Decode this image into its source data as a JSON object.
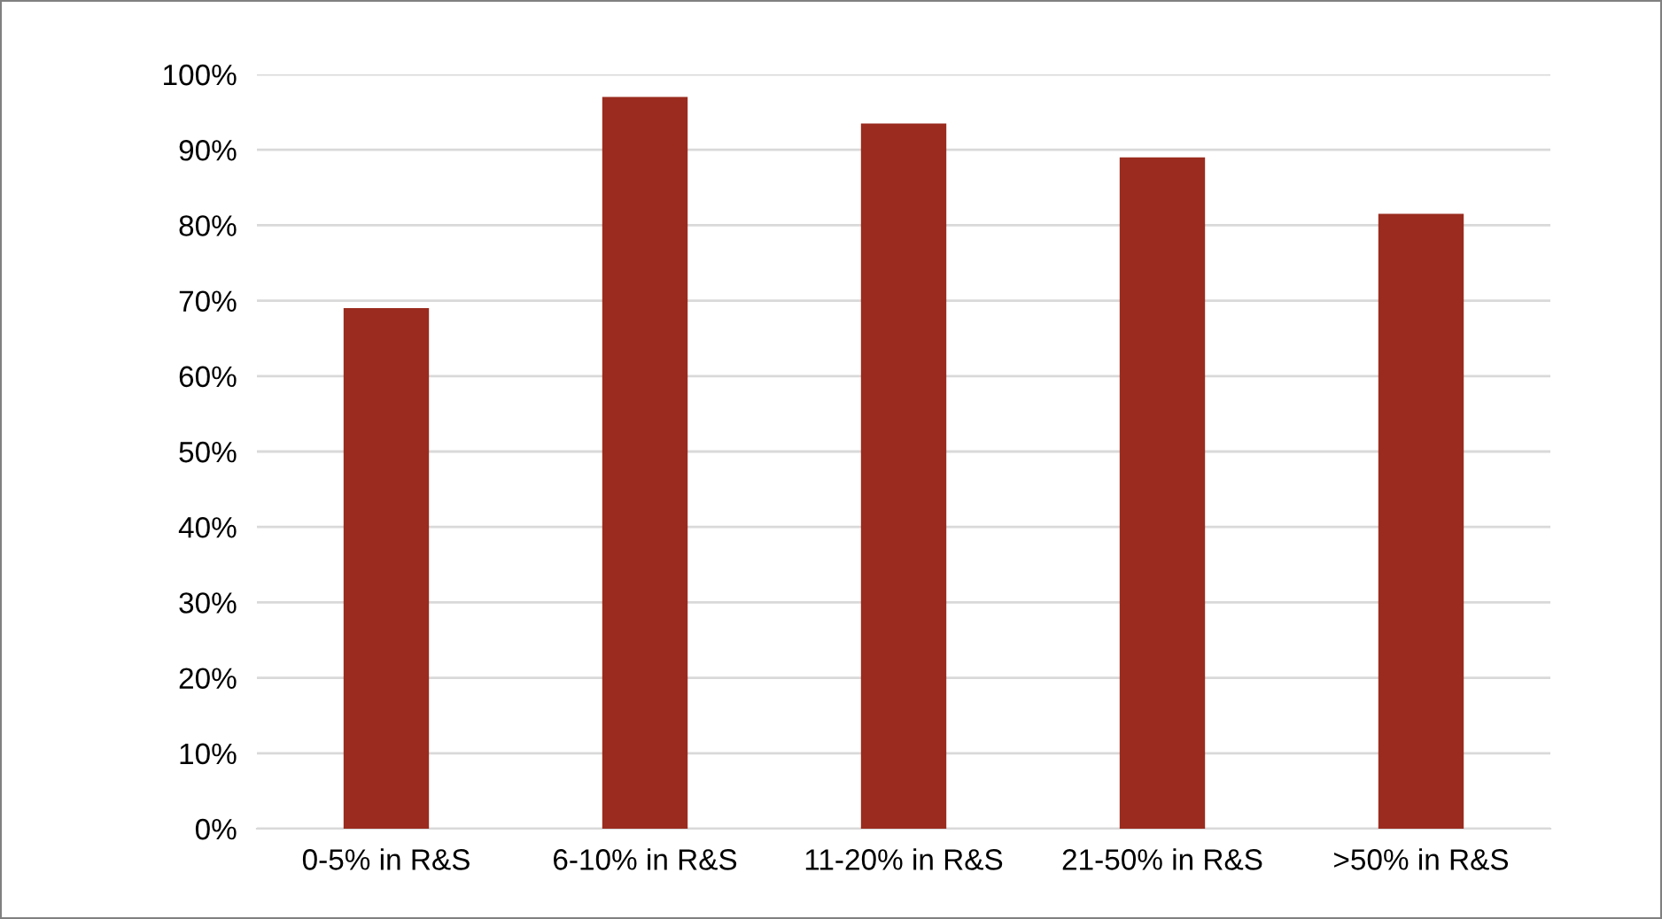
{
  "chart_data": {
    "type": "bar",
    "categories": [
      "0-5% in R&S",
      "6-10% in R&S",
      "11-20% in R&S",
      "21-50% in R&S",
      ">50% in R&S"
    ],
    "values": [
      69,
      97,
      93.5,
      89,
      81.5
    ],
    "color": "#9a2b1e",
    "ylim": [
      0,
      100
    ],
    "yticks": [
      {
        "value": 0,
        "label": "0%"
      },
      {
        "value": 10,
        "label": "10%"
      },
      {
        "value": 20,
        "label": "20%"
      },
      {
        "value": 30,
        "label": "30%"
      },
      {
        "value": 40,
        "label": "40%"
      },
      {
        "value": 50,
        "label": "50%"
      },
      {
        "value": 60,
        "label": "60%"
      },
      {
        "value": 70,
        "label": "70%"
      },
      {
        "value": 80,
        "label": "80%"
      },
      {
        "value": 90,
        "label": "90%"
      },
      {
        "value": 100,
        "label": "100%"
      }
    ],
    "grid": "y"
  }
}
